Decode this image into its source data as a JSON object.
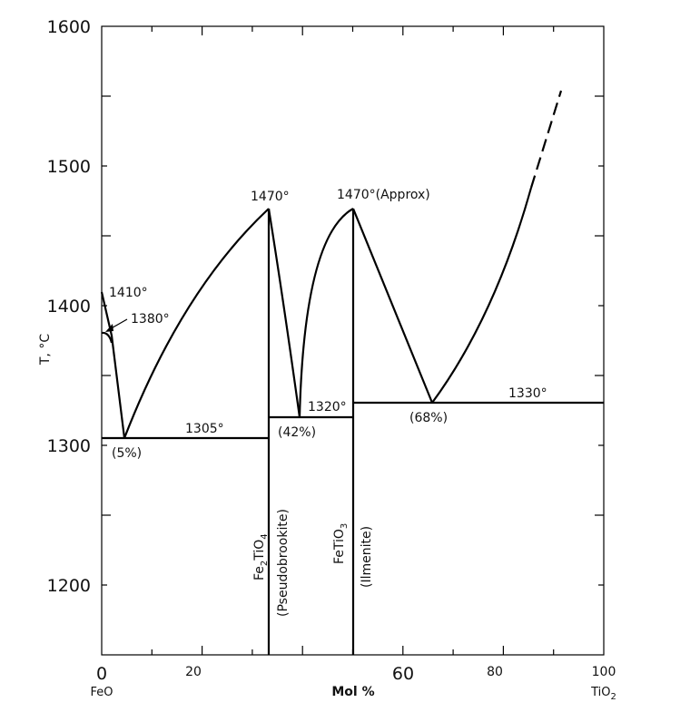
{
  "axes": {
    "y_label": "T, °C",
    "x_label": "Mol %",
    "x_left": "FeO",
    "x_right": [
      "TiO",
      "2"
    ],
    "y_ticks": [
      "1200",
      "1300",
      "1400",
      "1500",
      "1600"
    ],
    "x_ticks": [
      "0",
      "20",
      "60",
      "80",
      "100"
    ]
  },
  "annotations": {
    "t1410": "1410°",
    "t1380": "1380°",
    "p5": "(5%)",
    "t1305": "1305°",
    "t1470a": "1470°",
    "t1470b": "1470°(Approx)",
    "t1320": "1320°",
    "p42": "(42%)",
    "p68": "(68%)",
    "t1330": "1330°"
  },
  "compounds": [
    {
      "formula": [
        "Fe",
        "2",
        "TiO",
        "4"
      ],
      "name": "(Pseudobrookite)"
    },
    {
      "formula": [
        "FeTiO",
        "3"
      ],
      "name": "(Ilmenite)"
    }
  ]
}
